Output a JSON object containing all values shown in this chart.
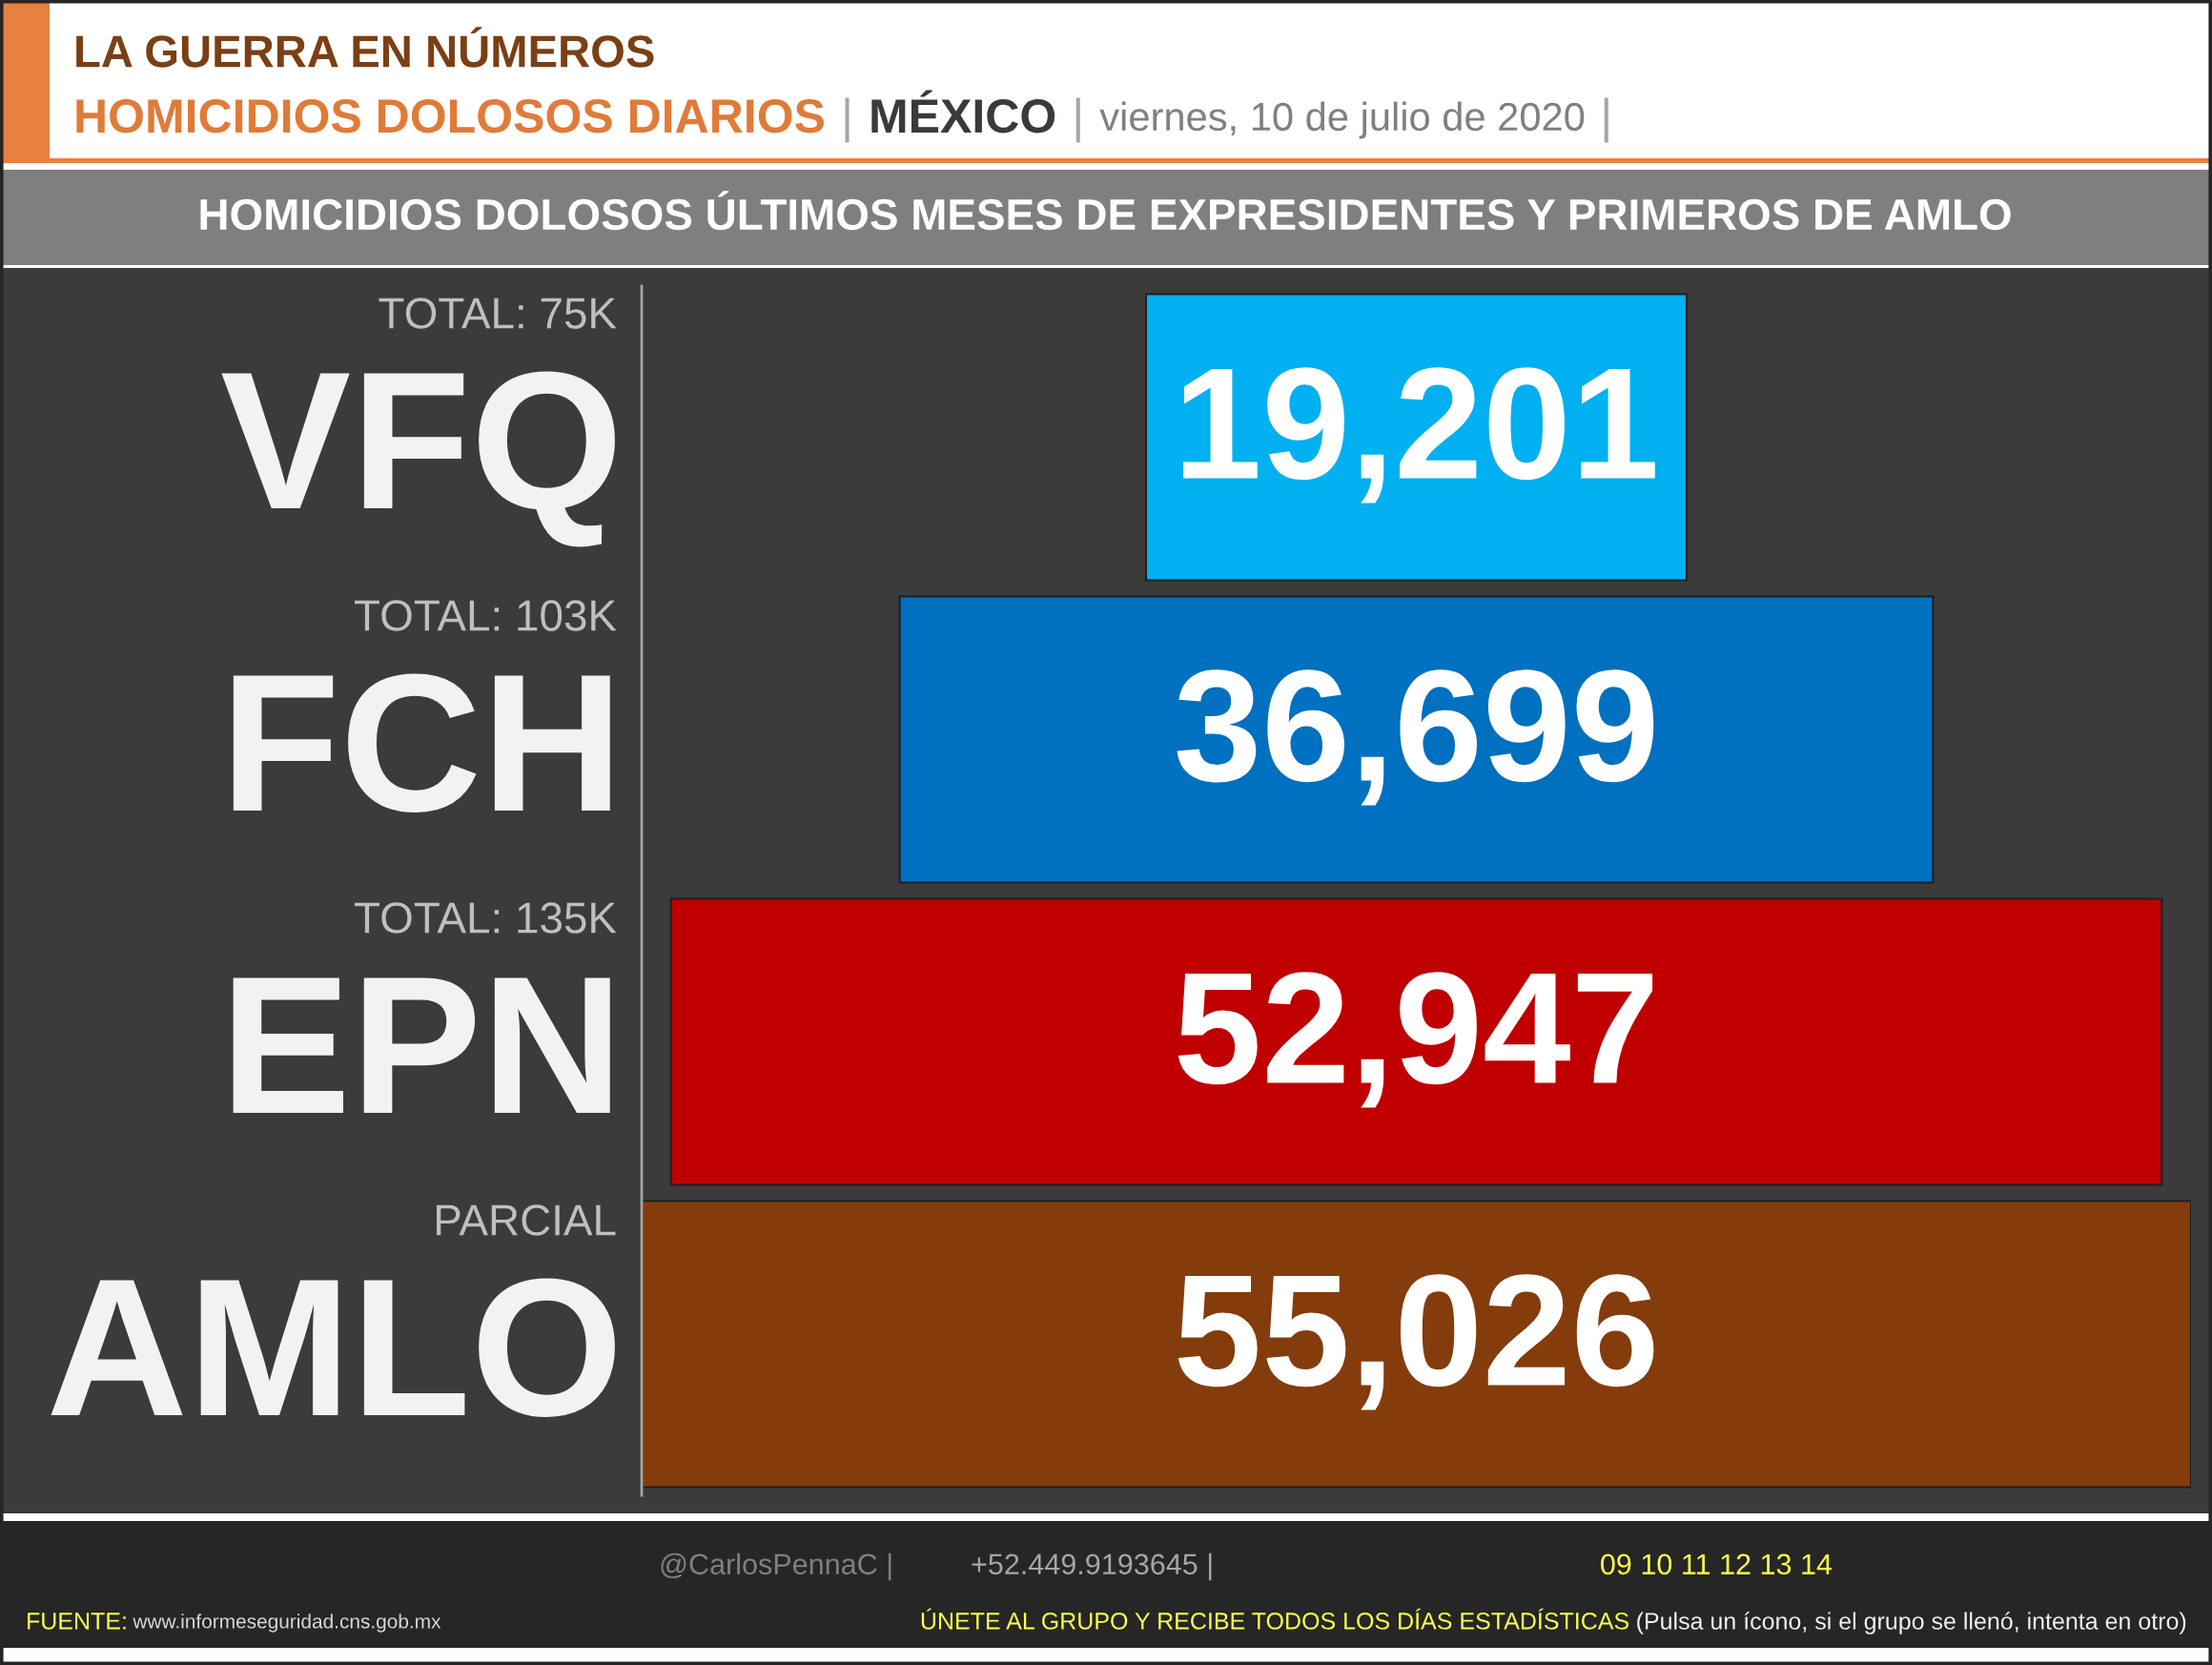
{
  "chart_data": {
    "type": "other",
    "title": "LA GUERRA EN NÚMEROS",
    "subtitle": "HOMICIDIOS DOLOSOS DIARIOS | MÉXICO | viernes, 10 de julio de 2020 |",
    "categories": [
      "VFQ",
      "FCH",
      "EPN",
      "AMLO"
    ],
    "values": [
      19201,
      36699,
      52947,
      55026
    ],
    "value_labels": [
      "19,201",
      "36,699",
      "52,947",
      "55,026"
    ],
    "colors": [
      "#00b0f0",
      "#0070c0",
      "#c00000",
      "#843c0c"
    ],
    "annotations": [
      "HOMICIDIOS DOLOSOS ÚLTIMOS MESES DE EXPRESIDENTES Y PRIMEROS DE AMLO",
      {
        "text": "TOTAL: 75K",
        "y": "VFQ"
      },
      {
        "text": "TOTAL: 103K",
        "y": "FCH"
      },
      {
        "text": "TOTAL: 135K",
        "y": "EPN"
      },
      {
        "text": "PARCIAL",
        "y": "AMLO"
      },
      "@CarlosPennaC |",
      "+52.449.9193645 |",
      "09 10 11 12 13 14",
      "FUENTE: www.informeseguridad.cns.gob.mx",
      "ÚNETE AL GRUPO Y RECIBE TODOS LOS DÍAS ESTADÍSTICAS (Pulsa un ícono, si el grupo se llenó, intenta en otro)"
    ]
  }
}
